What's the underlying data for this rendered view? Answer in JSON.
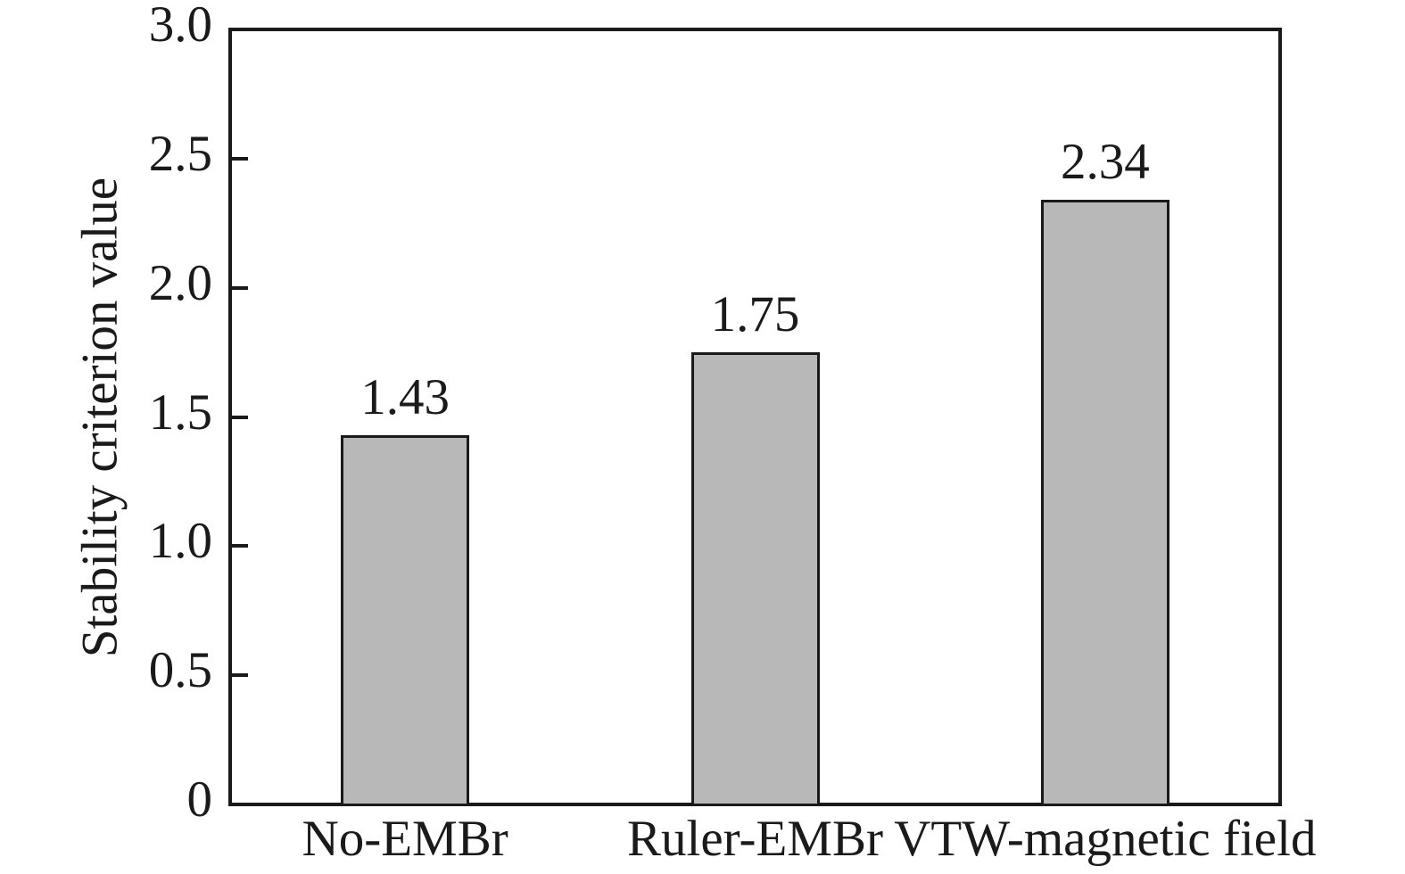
{
  "chart_data": {
    "type": "bar",
    "title": "",
    "xlabel": "",
    "ylabel": "Stability criterion value",
    "categories": [
      "No-EMBr",
      "Ruler-EMBr",
      "VTW-magnetic field"
    ],
    "values": [
      1.43,
      1.75,
      2.34
    ],
    "value_labels": [
      "1.43",
      "1.75",
      "2.34"
    ],
    "ylim": [
      0,
      3.0
    ],
    "yticks": [
      0,
      0.5,
      1.0,
      1.5,
      2.0,
      2.5,
      3.0
    ],
    "ytick_labels": [
      "0",
      "0.5",
      "1.0",
      "1.5",
      "2.0",
      "2.5",
      "3.0"
    ],
    "grid": false,
    "legend": "none",
    "tick_direction": "in",
    "colors": {
      "bar_fill": "#b8b8b8",
      "bar_edge": "#1a1a1a",
      "axis": "#1a1a1a",
      "text": "#1a1a1a",
      "background": "#ffffff"
    }
  }
}
